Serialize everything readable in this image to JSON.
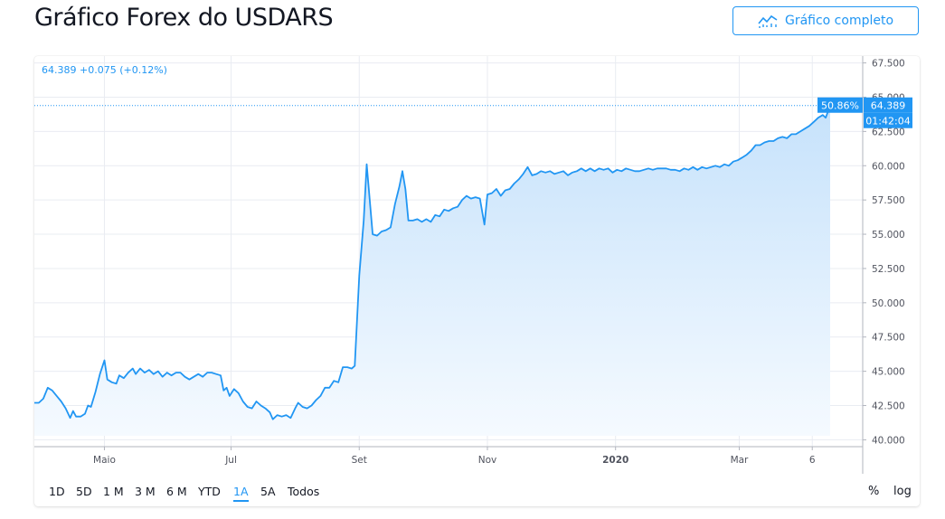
{
  "page": {
    "title": "Gráfico Forex do USDARS"
  },
  "header": {
    "full_chart_label": "Gráfico completo",
    "full_chart_icon": "chart-line-icon"
  },
  "legend": {
    "price": "64.389",
    "change": "+0.075",
    "change_pct": "(+0.12%)"
  },
  "toolbar": {
    "ranges": [
      "1D",
      "5D",
      "1 M",
      "3 M",
      "6 M",
      "YTD",
      "1A",
      "5A",
      "Todos"
    ],
    "active_range": "1A",
    "percent_label": "%",
    "log_label": "log"
  },
  "colors": {
    "accent": "#2196f3",
    "line": "#2196f3",
    "area_top": "#c6e2fb",
    "area_bottom": "#f5faff",
    "grid": "#e9ecf2"
  },
  "chart_data": {
    "type": "area",
    "series": [
      {
        "values": [
          [
            0,
            42.7
          ],
          [
            3,
            42.7
          ],
          [
            6,
            43.0
          ],
          [
            9,
            43.8
          ],
          [
            12,
            43.6
          ],
          [
            15,
            43.2
          ],
          [
            18,
            42.8
          ],
          [
            21,
            42.3
          ],
          [
            24,
            41.6
          ],
          [
            26,
            42.1
          ],
          [
            28,
            41.7
          ],
          [
            31,
            41.7
          ],
          [
            34,
            41.9
          ],
          [
            36,
            42.5
          ],
          [
            38,
            42.4
          ],
          [
            41,
            43.5
          ],
          [
            44,
            44.8
          ],
          [
            47,
            45.8
          ],
          [
            49,
            44.4
          ],
          [
            52,
            44.2
          ],
          [
            55,
            44.1
          ],
          [
            57,
            44.7
          ],
          [
            60,
            44.5
          ],
          [
            63,
            44.9
          ],
          [
            66,
            45.2
          ],
          [
            68,
            44.8
          ],
          [
            71,
            45.2
          ],
          [
            74,
            44.9
          ],
          [
            77,
            45.1
          ],
          [
            80,
            44.8
          ],
          [
            83,
            45.0
          ],
          [
            86,
            44.6
          ],
          [
            89,
            44.9
          ],
          [
            92,
            44.7
          ],
          [
            95,
            44.9
          ],
          [
            98,
            44.9
          ],
          [
            101,
            44.6
          ],
          [
            104,
            44.4
          ],
          [
            107,
            44.6
          ],
          [
            110,
            44.8
          ],
          [
            113,
            44.6
          ],
          [
            116,
            44.9
          ],
          [
            119,
            44.9
          ],
          [
            122,
            44.8
          ],
          [
            125,
            44.7
          ],
          [
            127,
            43.6
          ],
          [
            129,
            43.8
          ],
          [
            131,
            43.2
          ],
          [
            134,
            43.7
          ],
          [
            137,
            43.4
          ],
          [
            140,
            42.8
          ],
          [
            143,
            42.4
          ],
          [
            146,
            42.3
          ],
          [
            149,
            42.8
          ],
          [
            152,
            42.5
          ],
          [
            155,
            42.3
          ],
          [
            158,
            42.0
          ],
          [
            160,
            41.5
          ],
          [
            163,
            41.8
          ],
          [
            166,
            41.7
          ],
          [
            169,
            41.8
          ],
          [
            172,
            41.6
          ],
          [
            175,
            42.3
          ],
          [
            177,
            42.7
          ],
          [
            180,
            42.4
          ],
          [
            183,
            42.3
          ],
          [
            186,
            42.5
          ],
          [
            189,
            42.9
          ],
          [
            192,
            43.2
          ],
          [
            195,
            43.8
          ],
          [
            198,
            43.8
          ],
          [
            201,
            44.3
          ],
          [
            204,
            44.2
          ],
          [
            207,
            45.3
          ],
          [
            210,
            45.3
          ],
          [
            213,
            45.2
          ],
          [
            215,
            45.4
          ],
          [
            218,
            52.0
          ],
          [
            221,
            56.0
          ],
          [
            223,
            60.1
          ],
          [
            227,
            55.0
          ],
          [
            230,
            54.9
          ],
          [
            233,
            55.2
          ],
          [
            236,
            55.3
          ],
          [
            239,
            55.5
          ],
          [
            242,
            57.2
          ],
          [
            245,
            58.5
          ],
          [
            247,
            59.6
          ],
          [
            249,
            58.3
          ],
          [
            251,
            56.0
          ],
          [
            254,
            56.0
          ],
          [
            257,
            56.1
          ],
          [
            260,
            55.9
          ],
          [
            263,
            56.1
          ],
          [
            266,
            55.9
          ],
          [
            269,
            56.4
          ],
          [
            272,
            56.3
          ],
          [
            275,
            56.8
          ],
          [
            278,
            56.7
          ],
          [
            281,
            56.9
          ],
          [
            284,
            57.0
          ],
          [
            287,
            57.5
          ],
          [
            290,
            57.8
          ],
          [
            293,
            57.6
          ],
          [
            296,
            57.7
          ],
          [
            299,
            57.6
          ],
          [
            302,
            55.7
          ],
          [
            304,
            57.9
          ],
          [
            307,
            58.0
          ],
          [
            310,
            58.3
          ],
          [
            313,
            57.8
          ],
          [
            316,
            58.2
          ],
          [
            319,
            58.3
          ],
          [
            322,
            58.7
          ],
          [
            325,
            59.0
          ],
          [
            328,
            59.4
          ],
          [
            331,
            59.9
          ],
          [
            334,
            59.3
          ],
          [
            337,
            59.4
          ],
          [
            340,
            59.6
          ],
          [
            343,
            59.5
          ],
          [
            346,
            59.6
          ],
          [
            349,
            59.4
          ],
          [
            352,
            59.5
          ],
          [
            355,
            59.6
          ],
          [
            358,
            59.3
          ],
          [
            361,
            59.5
          ],
          [
            364,
            59.6
          ],
          [
            367,
            59.8
          ],
          [
            370,
            59.6
          ],
          [
            373,
            59.8
          ],
          [
            376,
            59.6
          ],
          [
            379,
            59.8
          ],
          [
            382,
            59.7
          ],
          [
            385,
            59.8
          ],
          [
            388,
            59.5
          ],
          [
            391,
            59.7
          ],
          [
            394,
            59.6
          ],
          [
            397,
            59.8
          ],
          [
            400,
            59.7
          ],
          [
            403,
            59.6
          ],
          [
            406,
            59.6
          ],
          [
            409,
            59.7
          ],
          [
            412,
            59.8
          ],
          [
            415,
            59.7
          ],
          [
            418,
            59.8
          ],
          [
            421,
            59.8
          ],
          [
            424,
            59.8
          ],
          [
            427,
            59.7
          ],
          [
            430,
            59.7
          ],
          [
            433,
            59.6
          ],
          [
            436,
            59.8
          ],
          [
            439,
            59.7
          ],
          [
            442,
            59.9
          ],
          [
            445,
            59.7
          ],
          [
            448,
            59.9
          ],
          [
            451,
            59.8
          ],
          [
            454,
            59.9
          ],
          [
            457,
            60.0
          ],
          [
            460,
            59.9
          ],
          [
            463,
            60.1
          ],
          [
            466,
            60.0
          ],
          [
            469,
            60.3
          ],
          [
            472,
            60.4
          ],
          [
            475,
            60.6
          ],
          [
            478,
            60.8
          ],
          [
            481,
            61.1
          ],
          [
            484,
            61.5
          ],
          [
            487,
            61.5
          ],
          [
            490,
            61.7
          ],
          [
            493,
            61.8
          ],
          [
            496,
            61.8
          ],
          [
            499,
            62.0
          ],
          [
            502,
            62.1
          ],
          [
            505,
            62.0
          ],
          [
            508,
            62.3
          ],
          [
            511,
            62.3
          ],
          [
            514,
            62.5
          ],
          [
            517,
            62.7
          ],
          [
            520,
            62.9
          ],
          [
            523,
            63.2
          ],
          [
            526,
            63.5
          ],
          [
            529,
            63.7
          ],
          [
            531,
            63.5
          ],
          [
            534,
            64.389
          ]
        ]
      }
    ],
    "x_note": "days from start of window",
    "x_ticks": [
      {
        "label": "Maio",
        "x": 47,
        "bold": false
      },
      {
        "label": "Jul",
        "x": 132,
        "bold": false
      },
      {
        "label": "Set",
        "x": 218,
        "bold": false
      },
      {
        "label": "Nov",
        "x": 304,
        "bold": false
      },
      {
        "label": "2020",
        "x": 390,
        "bold": true
      },
      {
        "label": "Mar",
        "x": 473,
        "bold": false
      },
      {
        "label": "6",
        "x": 522,
        "bold": false
      }
    ],
    "xlim": [
      0,
      534
    ],
    "y_ticks": [
      40.0,
      42.5,
      45.0,
      47.5,
      50.0,
      52.5,
      55.0,
      57.5,
      60.0,
      62.5,
      65.0,
      67.5
    ],
    "y_tick_labels": [
      "40.000",
      "42.500",
      "45.000",
      "47.500",
      "50.000",
      "52.500",
      "55.000",
      "57.500",
      "60.000",
      "62.500",
      "65.000",
      "67.500"
    ],
    "ylim": [
      39.5,
      68.0
    ],
    "last_price_label": "64.389",
    "change_tag": "50.86%",
    "countdown_tag": "01:42:04"
  }
}
